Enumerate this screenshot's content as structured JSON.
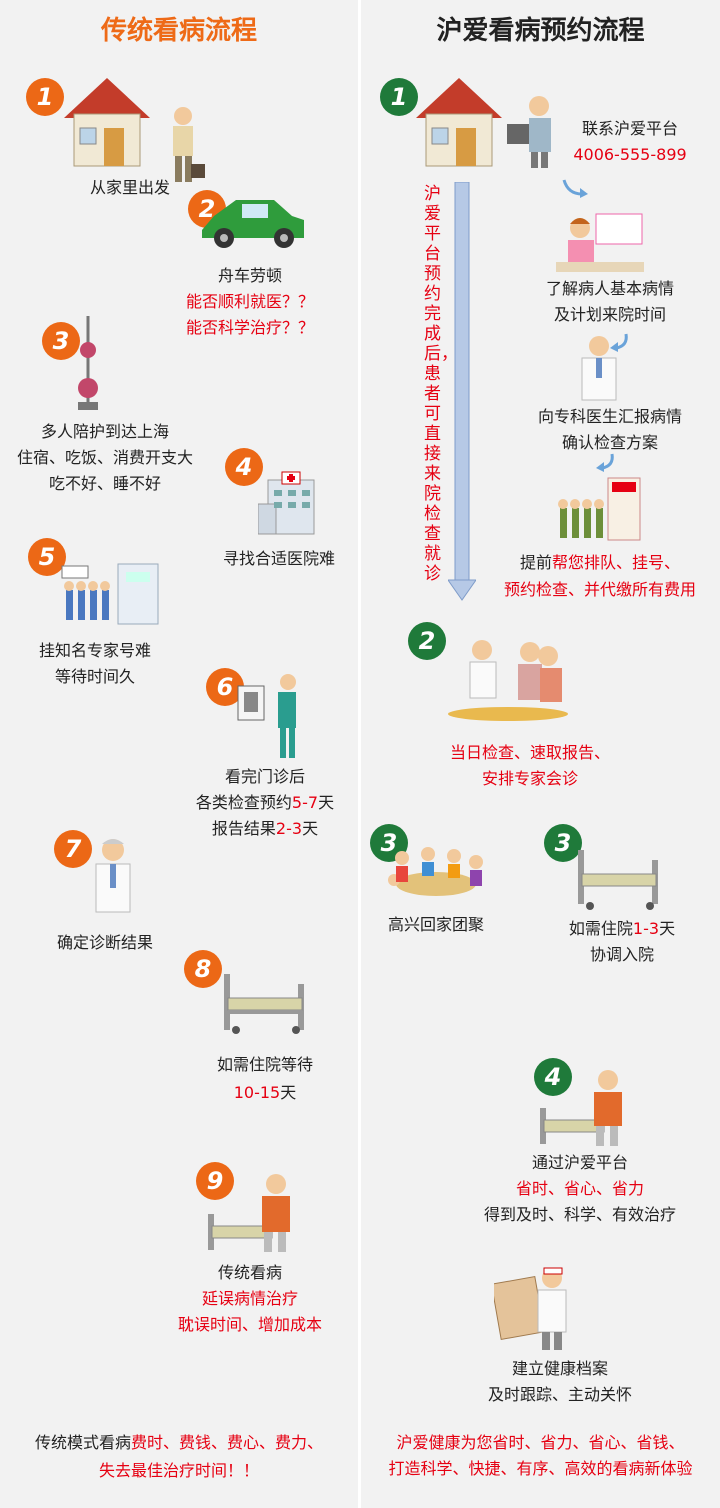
{
  "left": {
    "title": "传统看病流程",
    "steps": [
      {
        "num": "1",
        "lines": [
          "从家里出发"
        ]
      },
      {
        "num": "2",
        "lines": [
          "舟车劳顿"
        ],
        "red": [
          "能否顺利就医？？",
          "能否科学治疗？？"
        ]
      },
      {
        "num": "3",
        "lines": [
          "多人陪护到达上海",
          "住宿、吃饭、消费开支大",
          "吃不好、睡不好"
        ]
      },
      {
        "num": "4",
        "lines": [
          "寻找合适医院难"
        ]
      },
      {
        "num": "5",
        "lines": [
          "挂知名专家号难",
          "等待时间久"
        ]
      },
      {
        "num": "6",
        "lines": [
          "看完门诊后"
        ],
        "l2a": "各类检查预约",
        "l2r": "5-7",
        "l2b": "天",
        "l3a": "报告结果",
        "l3r": "2-3",
        "l3b": "天"
      },
      {
        "num": "7",
        "lines": [
          "确定诊断结果"
        ]
      },
      {
        "num": "8",
        "lines": [
          "如需住院等待"
        ],
        "red_a": "10-15",
        "tail": "天"
      },
      {
        "num": "9",
        "lines": [
          "传统看病"
        ],
        "red": [
          "延误病情治疗",
          "耽误时间、增加成本"
        ]
      }
    ],
    "footer_a": "传统模式看病",
    "footer_red": "费时、费钱、费心、费力、",
    "footer_red2": "失去最佳治疗时间！！"
  },
  "right": {
    "title": "沪爱看病预约流程",
    "contact_label": "联系沪爱平台",
    "phone": "4006-555-899",
    "vertical_note": "沪爱平台预约完成后，患者可直接来院检查就诊",
    "s1b": [
      "了解病人基本病情",
      "及计划来院时间"
    ],
    "s1c": [
      "向专科医生汇报病情",
      "确认检查方案"
    ],
    "s1d_a": "提前",
    "s1d_red": "帮您排队、挂号、",
    "s1d_red2": "预约检查、并代缴所有费用",
    "s2_red": [
      "当日检查、速取报告、",
      "安排专家会诊"
    ],
    "s3a": "高兴回家团聚",
    "s3b_a": "如需住院",
    "s3b_red": "1-3",
    "s3b_b": "天",
    "s3b_2": "协调入院",
    "s4": "通过沪爱平台",
    "s4_red": "省时、省心、省力",
    "s4_3": "得到及时、科学、有效治疗",
    "s5": [
      "建立健康档案",
      "及时跟踪、主动关怀"
    ],
    "footer_red": [
      "沪爱健康为您省时、省力、省心、省钱、",
      "打造科学、快捷、有序、高效的看病新体验"
    ],
    "nums": {
      "n1": "1",
      "n2": "2",
      "n3a": "3",
      "n3b": "3",
      "n4": "4"
    }
  }
}
